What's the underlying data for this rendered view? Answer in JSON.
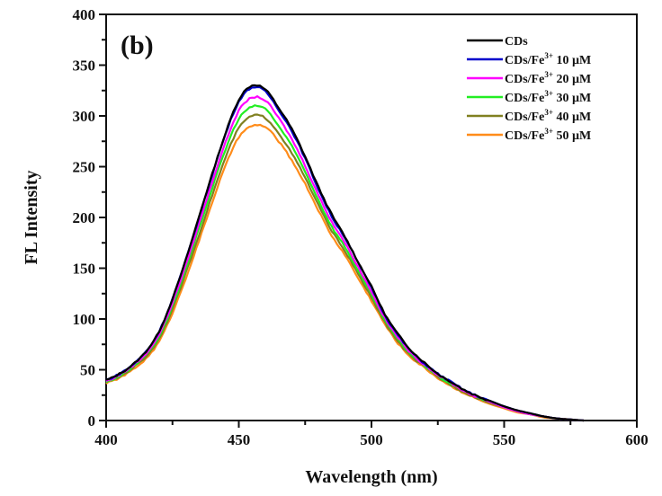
{
  "chart_data": {
    "type": "line",
    "panel_label": "(b)",
    "title": "",
    "xlabel": "Wavelength (nm)",
    "ylabel": "FL Intensity",
    "xlim": [
      400,
      600
    ],
    "ylim": [
      0,
      400
    ],
    "xticks": [
      400,
      450,
      500,
      550,
      600
    ],
    "xtick_labels": [
      "400",
      "450",
      "500",
      "550",
      "600"
    ],
    "yticks": [
      0,
      50,
      100,
      150,
      200,
      250,
      300,
      350,
      400
    ],
    "ytick_labels": [
      "0",
      "50",
      "100",
      "150",
      "200",
      "250",
      "300",
      "350",
      "400"
    ],
    "grid": false,
    "legend_position": "top-right",
    "x": [
      400,
      405,
      410,
      415,
      420,
      425,
      430,
      435,
      440,
      445,
      450,
      455,
      460,
      465,
      470,
      475,
      480,
      485,
      490,
      495,
      500,
      505,
      510,
      515,
      520,
      525,
      530,
      535,
      540,
      545,
      550,
      555,
      560,
      565,
      570,
      575,
      580
    ],
    "series": [
      {
        "name": "CDs",
        "label_main": "CDs",
        "label_sup": "",
        "label_tail": "",
        "color": "#000000",
        "values": [
          40,
          46,
          55,
          68,
          88,
          120,
          158,
          201,
          243,
          283,
          316,
          330,
          326,
          308,
          287,
          260,
          230,
          203,
          181,
          156,
          132,
          105,
          85,
          69,
          57,
          46,
          38,
          30,
          24,
          19,
          14,
          10,
          7,
          4,
          2,
          1,
          0
        ]
      },
      {
        "name": "CDs/Fe3+ 10 µM",
        "label_main": "CDs/Fe",
        "label_sup": "3+",
        "label_tail": " 10 µM",
        "color": "#0000cc",
        "values": [
          40,
          46,
          55,
          68,
          88,
          120,
          158,
          200,
          242,
          282,
          314,
          328,
          324,
          306,
          285,
          258,
          228,
          201,
          180,
          155,
          131,
          104,
          84,
          68,
          56,
          46,
          38,
          30,
          24,
          19,
          14,
          10,
          7,
          4,
          2,
          1,
          0
        ]
      },
      {
        "name": "CDs/Fe3+ 20 µM",
        "label_main": "CDs/Fe",
        "label_sup": "3+",
        "label_tail": " 20 µM",
        "color": "#ff00ff",
        "values": [
          39,
          45,
          54,
          66,
          85,
          116,
          153,
          194,
          235,
          274,
          305,
          318,
          315,
          298,
          277,
          251,
          222,
          196,
          175,
          151,
          127,
          101,
          82,
          66,
          55,
          45,
          37,
          29,
          23,
          18,
          13,
          9,
          6,
          4,
          2,
          1,
          0
        ]
      },
      {
        "name": "CDs/Fe3+ 30 µM",
        "label_main": "CDs/Fe",
        "label_sup": "3+",
        "label_tail": " 30 µM",
        "color": "#22ee22",
        "values": [
          38,
          44,
          53,
          65,
          83,
          113,
          149,
          189,
          229,
          267,
          297,
          309,
          307,
          290,
          270,
          245,
          217,
          191,
          171,
          147,
          124,
          99,
          80,
          65,
          54,
          44,
          36,
          29,
          23,
          18,
          13,
          9,
          6,
          4,
          2,
          1,
          0
        ]
      },
      {
        "name": "CDs/Fe3+ 40 µM",
        "label_main": "CDs/Fe",
        "label_sup": "3+",
        "label_tail": " 40 µM",
        "color": "#808020",
        "values": [
          38,
          43,
          52,
          63,
          81,
          110,
          145,
          183,
          222,
          259,
          288,
          300,
          298,
          283,
          263,
          239,
          212,
          187,
          167,
          144,
          121,
          97,
          78,
          63,
          53,
          43,
          35,
          28,
          22,
          17,
          13,
          9,
          6,
          4,
          2,
          1,
          0
        ]
      },
      {
        "name": "CDs/Fe3+ 50 µM",
        "label_main": "CDs/Fe",
        "label_sup": "3+",
        "label_tail": " 50 µM",
        "color": "#ff8c1a",
        "values": [
          37,
          42,
          50,
          61,
          78,
          106,
          140,
          177,
          215,
          251,
          279,
          290,
          289,
          275,
          256,
          233,
          207,
          182,
          163,
          140,
          118,
          95,
          76,
          62,
          52,
          42,
          34,
          27,
          21,
          16,
          12,
          8,
          6,
          3,
          2,
          1,
          0
        ]
      }
    ]
  }
}
